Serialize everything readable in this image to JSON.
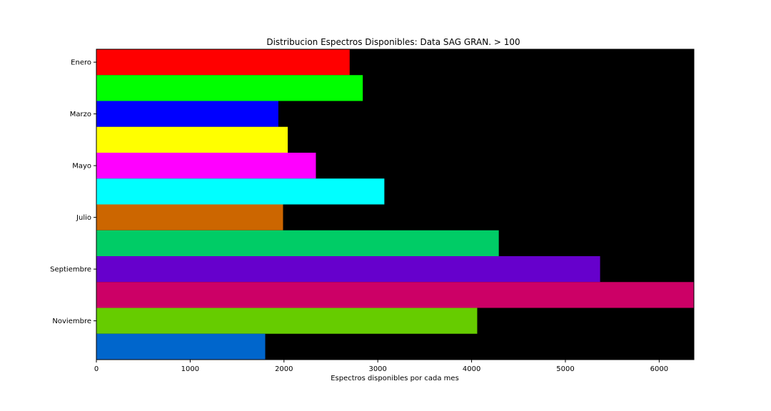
{
  "chart_data": {
    "type": "bar",
    "orientation": "horizontal",
    "title": "Distribucion Espectros Disponibles: Data  SAG GRAN. > 100",
    "xlabel": "Espectros disponibles por cada mes",
    "ylabel": "",
    "xlim": [
      0,
      6370
    ],
    "x_ticks": [
      0,
      1000,
      2000,
      3000,
      4000,
      5000,
      6000
    ],
    "y_tick_labels": [
      "Enero",
      "Marzo",
      "Mayo",
      "Julio",
      "Septiembre",
      "Noviembre"
    ],
    "background_color": "#000000",
    "grid": false,
    "bars": [
      {
        "value": 2700,
        "color": "#ff0000"
      },
      {
        "value": 2840,
        "color": "#00ff00"
      },
      {
        "value": 1940,
        "color": "#0000ff"
      },
      {
        "value": 2040,
        "color": "#ffff00"
      },
      {
        "value": 2340,
        "color": "#ff00ff"
      },
      {
        "value": 3070,
        "color": "#00ffff"
      },
      {
        "value": 1990,
        "color": "#cc6600"
      },
      {
        "value": 4290,
        "color": "#00cc66"
      },
      {
        "value": 5370,
        "color": "#6600cc"
      },
      {
        "value": 6370,
        "color": "#cc0066"
      },
      {
        "value": 4060,
        "color": "#66cc00"
      },
      {
        "value": 1800,
        "color": "#0066cc"
      }
    ]
  }
}
